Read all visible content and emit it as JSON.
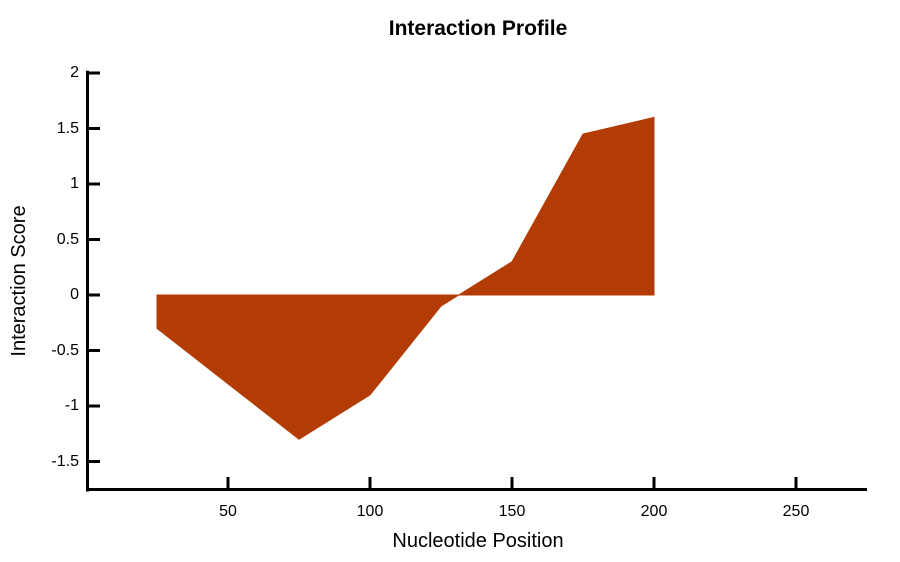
{
  "title": "Interaction Profile",
  "chart_data": {
    "type": "area",
    "title": "Interaction Profile",
    "xlabel": "Nucleotide Position",
    "ylabel": "Interaction Score",
    "x": [
      25,
      50,
      75,
      100,
      125,
      150,
      175,
      200
    ],
    "y": [
      -0.3,
      -0.8,
      -1.3,
      -0.9,
      -0.1,
      0.3,
      1.45,
      1.6
    ],
    "baseline": 0,
    "xticks": [
      50,
      100,
      150,
      200,
      250
    ],
    "yticks": [
      2,
      1.5,
      1,
      0.5,
      0,
      -0.5,
      -1,
      -1.5
    ],
    "xlim": [
      0,
      275
    ],
    "ylim": [
      -1.78,
      2.02
    ],
    "grid": false,
    "legend": null,
    "fill_color": "#B23C04",
    "axis_color": "#000000"
  }
}
